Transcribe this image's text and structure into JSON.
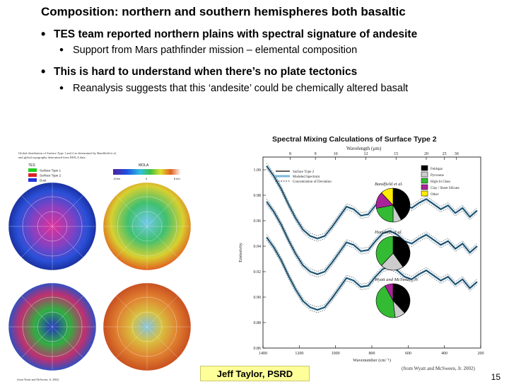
{
  "slide": {
    "title": "Composition: northern and southern hemispheres both basaltic",
    "bullets": [
      {
        "text": "TES team reported northern plains with spectral signature of andesite",
        "sub": "Support from Mars pathfinder mission – elemental composition"
      },
      {
        "text": "This is hard to understand when there’s no plate tectonics",
        "sub": "Reanalysis suggests that this ‘andesite’ could be chemically altered basalt"
      }
    ],
    "credit": "Jeff Taylor, PSRD",
    "page_number": "15"
  },
  "map_figure": {
    "caption_lines": [
      "Global distribution of Surface Type 1 and 2 as determined by Bandfield et al.",
      "and global topography determined from MOLA data."
    ],
    "tes_legend_title": "TES",
    "tes_legend": [
      {
        "label": "Surface Type 1",
        "color": "#22cc22"
      },
      {
        "label": "Surface Type 2",
        "color": "#dd2222"
      },
      {
        "label": "Dust",
        "color": "#2233dd"
      }
    ],
    "mola_title": "MOLA",
    "mola_scale": [
      "-8 km",
      "0",
      "8 km"
    ],
    "footer": "(from Wyatt and McSween, Jr. 2002)"
  },
  "chart_data": {
    "type": "line",
    "title": "Spectral Mixing Calculations of Surface Type 2",
    "top_axis_label": "Wavelength (µm)",
    "top_ticks": [
      "8",
      "9",
      "10",
      "12",
      "15",
      "20",
      "25",
      "30"
    ],
    "xlabel": "Wavenumber (cm⁻¹)",
    "xlim": [
      1400,
      200
    ],
    "x_ticks": [
      1400,
      1200,
      1000,
      800,
      600,
      400,
      200
    ],
    "ylabel": "Emissivity",
    "ylim": [
      0.86,
      1.01
    ],
    "y_ticks": [
      "1.00",
      "0.98",
      "0.96",
      "0.94",
      "0.92",
      "0.90",
      "0.88",
      "0.86"
    ],
    "legend": [
      "Surface Type 2",
      "Modeled Spectrum",
      "Concentration of Deviation"
    ],
    "series_offsets": [
      0,
      -0.028,
      -0.056
    ],
    "sample_x": [
      1380,
      1340,
      1300,
      1260,
      1220,
      1180,
      1140,
      1100,
      1060,
      1020,
      980,
      940,
      900,
      860,
      820,
      780,
      740,
      700,
      660,
      620,
      580,
      540,
      500,
      460,
      420,
      380,
      340,
      300,
      260,
      220
    ],
    "sample_y": [
      1.003,
      0.995,
      0.985,
      0.973,
      0.962,
      0.953,
      0.948,
      0.946,
      0.948,
      0.955,
      0.963,
      0.971,
      0.969,
      0.964,
      0.965,
      0.972,
      0.978,
      0.98,
      0.977,
      0.972,
      0.97,
      0.974,
      0.977,
      0.973,
      0.969,
      0.972,
      0.966,
      0.97,
      0.963,
      0.968
    ],
    "pies": [
      {
        "label": "Bandfield et al.",
        "slices": [
          0.42,
          0.08,
          0.22,
          0.16,
          0.12
        ]
      },
      {
        "label": "Hamilton et al.",
        "slices": [
          0.4,
          0.22,
          0.38
        ]
      },
      {
        "label": "Wyatt and McSween, Jr.",
        "slices": [
          0.38,
          0.1,
          0.44,
          0.08
        ]
      }
    ],
    "pie_legend": [
      {
        "label": "Feldspar",
        "color": "#000000"
      },
      {
        "label": "Pyroxene",
        "color": "#cccccc"
      },
      {
        "label": "High-Si Glass",
        "color": "#33bb33"
      },
      {
        "label": "Clay / Sheet Silicate",
        "color": "#aa2299"
      },
      {
        "label": "Other",
        "color": "#ffee00"
      }
    ],
    "pie_colors": [
      "#000000",
      "#cccccc",
      "#33bb33",
      "#aa2299",
      "#ffee00"
    ],
    "citation": "(from Wyatt and McSween, Jr. 2002)"
  }
}
